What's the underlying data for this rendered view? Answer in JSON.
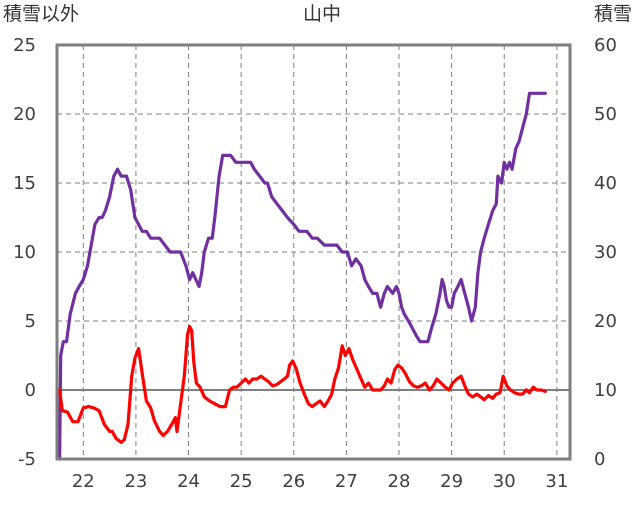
{
  "chart_data": {
    "type": "line",
    "title": "山中",
    "left_axis_label": "積雪以外",
    "right_axis_label": "積雪",
    "x_ticks": [
      "22",
      "23",
      "24",
      "25",
      "26",
      "27",
      "28",
      "29",
      "30",
      "31"
    ],
    "x_range": [
      21.5,
      31.25
    ],
    "y_left_ticks": [
      -5,
      0,
      5,
      10,
      15,
      20,
      25
    ],
    "y_left_range": [
      -5,
      25
    ],
    "y_right_ticks": [
      0,
      10,
      20,
      30,
      40,
      50,
      60
    ],
    "y_right_range": [
      0,
      60
    ],
    "grid": true,
    "zero_line": 0,
    "colors": {
      "snow_depth": "#7030a0",
      "other": "#ff0000",
      "grid": "#808080",
      "frame": "#7f7f7f"
    },
    "series": [
      {
        "axis": "right",
        "color": "#7030a0",
        "points": [
          [
            21.55,
            0
          ],
          [
            21.57,
            15
          ],
          [
            21.62,
            17
          ],
          [
            21.68,
            17
          ],
          [
            21.75,
            21
          ],
          [
            21.85,
            24
          ],
          [
            21.92,
            25
          ],
          [
            22.0,
            26
          ],
          [
            22.08,
            28
          ],
          [
            22.15,
            31
          ],
          [
            22.22,
            34
          ],
          [
            22.3,
            35
          ],
          [
            22.36,
            35
          ],
          [
            22.42,
            36
          ],
          [
            22.5,
            38
          ],
          [
            22.58,
            41
          ],
          [
            22.65,
            42
          ],
          [
            22.72,
            41
          ],
          [
            22.82,
            41
          ],
          [
            22.9,
            39
          ],
          [
            22.98,
            35
          ],
          [
            23.05,
            34
          ],
          [
            23.12,
            33
          ],
          [
            23.2,
            33
          ],
          [
            23.28,
            32
          ],
          [
            23.35,
            32
          ],
          [
            23.45,
            32
          ],
          [
            23.55,
            31
          ],
          [
            23.65,
            30
          ],
          [
            23.75,
            30
          ],
          [
            23.85,
            30
          ],
          [
            23.95,
            28
          ],
          [
            24.02,
            26
          ],
          [
            24.08,
            27
          ],
          [
            24.14,
            26
          ],
          [
            24.2,
            25
          ],
          [
            24.25,
            27
          ],
          [
            24.3,
            30
          ],
          [
            24.38,
            32
          ],
          [
            24.45,
            32
          ],
          [
            24.5,
            35
          ],
          [
            24.58,
            41
          ],
          [
            24.65,
            44
          ],
          [
            24.72,
            44
          ],
          [
            24.8,
            44
          ],
          [
            24.9,
            43
          ],
          [
            25.0,
            43
          ],
          [
            25.1,
            43
          ],
          [
            25.18,
            43
          ],
          [
            25.25,
            42
          ],
          [
            25.35,
            41
          ],
          [
            25.45,
            40
          ],
          [
            25.5,
            40
          ],
          [
            25.58,
            38
          ],
          [
            25.68,
            37
          ],
          [
            25.78,
            36
          ],
          [
            25.88,
            35
          ],
          [
            26.0,
            34
          ],
          [
            26.1,
            33
          ],
          [
            26.25,
            33
          ],
          [
            26.35,
            32
          ],
          [
            26.45,
            32
          ],
          [
            26.58,
            31
          ],
          [
            26.7,
            31
          ],
          [
            26.82,
            31
          ],
          [
            26.92,
            30
          ],
          [
            27.02,
            30
          ],
          [
            27.1,
            28
          ],
          [
            27.18,
            29
          ],
          [
            27.28,
            28
          ],
          [
            27.35,
            26
          ],
          [
            27.42,
            25
          ],
          [
            27.5,
            24
          ],
          [
            27.58,
            24
          ],
          [
            27.65,
            22
          ],
          [
            27.72,
            24
          ],
          [
            27.78,
            25
          ],
          [
            27.88,
            24
          ],
          [
            27.95,
            25
          ],
          [
            28.0,
            24
          ],
          [
            28.05,
            22
          ],
          [
            28.1,
            21
          ],
          [
            28.18,
            20
          ],
          [
            28.25,
            19
          ],
          [
            28.32,
            18
          ],
          [
            28.4,
            17
          ],
          [
            28.48,
            17
          ],
          [
            28.55,
            17
          ],
          [
            28.62,
            19
          ],
          [
            28.7,
            21
          ],
          [
            28.78,
            24
          ],
          [
            28.82,
            26
          ],
          [
            28.86,
            25
          ],
          [
            28.9,
            23
          ],
          [
            28.95,
            22
          ],
          [
            29.0,
            22
          ],
          [
            29.05,
            24
          ],
          [
            29.12,
            25
          ],
          [
            29.18,
            26
          ],
          [
            29.25,
            24
          ],
          [
            29.32,
            22
          ],
          [
            29.38,
            20
          ],
          [
            29.45,
            22
          ],
          [
            29.5,
            27
          ],
          [
            29.55,
            30
          ],
          [
            29.62,
            32
          ],
          [
            29.7,
            34
          ],
          [
            29.78,
            36
          ],
          [
            29.85,
            37
          ],
          [
            29.88,
            41
          ],
          [
            29.95,
            40
          ],
          [
            30.0,
            43
          ],
          [
            30.05,
            42
          ],
          [
            30.1,
            43
          ],
          [
            30.15,
            42
          ],
          [
            30.22,
            45
          ],
          [
            30.28,
            46
          ],
          [
            30.35,
            48
          ],
          [
            30.42,
            50
          ],
          [
            30.48,
            53
          ],
          [
            30.52,
            53
          ],
          [
            30.58,
            53
          ],
          [
            30.65,
            53
          ],
          [
            30.72,
            53
          ],
          [
            30.78,
            53
          ]
        ]
      },
      {
        "axis": "left",
        "color": "#ff0000",
        "points": [
          [
            21.55,
            0
          ],
          [
            21.6,
            -1.5
          ],
          [
            21.7,
            -1.6
          ],
          [
            21.8,
            -2.3
          ],
          [
            21.9,
            -2.3
          ],
          [
            22.0,
            -1.3
          ],
          [
            22.1,
            -1.2
          ],
          [
            22.2,
            -1.3
          ],
          [
            22.3,
            -1.5
          ],
          [
            22.4,
            -2.5
          ],
          [
            22.5,
            -3.0
          ],
          [
            22.55,
            -3.0
          ],
          [
            22.62,
            -3.5
          ],
          [
            22.72,
            -3.8
          ],
          [
            22.78,
            -3.6
          ],
          [
            22.85,
            -2.5
          ],
          [
            22.92,
            1.0
          ],
          [
            22.98,
            2.3
          ],
          [
            23.05,
            3.0
          ],
          [
            23.12,
            1.2
          ],
          [
            23.2,
            -0.8
          ],
          [
            23.28,
            -1.3
          ],
          [
            23.35,
            -2.2
          ],
          [
            23.45,
            -3.0
          ],
          [
            23.52,
            -3.3
          ],
          [
            23.6,
            -3.0
          ],
          [
            23.68,
            -2.5
          ],
          [
            23.75,
            -2.0
          ],
          [
            23.78,
            -3.0
          ],
          [
            23.85,
            -1.0
          ],
          [
            23.92,
            1.0
          ],
          [
            23.98,
            4.0
          ],
          [
            24.02,
            4.6
          ],
          [
            24.06,
            4.3
          ],
          [
            24.1,
            2.0
          ],
          [
            24.15,
            0.5
          ],
          [
            24.22,
            0.2
          ],
          [
            24.3,
            -0.5
          ],
          [
            24.4,
            -0.8
          ],
          [
            24.5,
            -1.0
          ],
          [
            24.6,
            -1.2
          ],
          [
            24.7,
            -1.2
          ],
          [
            24.78,
            0.0
          ],
          [
            24.85,
            0.2
          ],
          [
            24.92,
            0.2
          ],
          [
            25.0,
            0.5
          ],
          [
            25.08,
            0.8
          ],
          [
            25.15,
            0.5
          ],
          [
            25.22,
            0.8
          ],
          [
            25.3,
            0.8
          ],
          [
            25.38,
            1.0
          ],
          [
            25.45,
            0.8
          ],
          [
            25.52,
            0.6
          ],
          [
            25.6,
            0.3
          ],
          [
            25.68,
            0.4
          ],
          [
            25.75,
            0.6
          ],
          [
            25.82,
            0.8
          ],
          [
            25.88,
            1.0
          ],
          [
            25.92,
            1.8
          ],
          [
            25.98,
            2.1
          ],
          [
            26.05,
            1.5
          ],
          [
            26.12,
            0.5
          ],
          [
            26.2,
            -0.3
          ],
          [
            26.28,
            -1.0
          ],
          [
            26.35,
            -1.2
          ],
          [
            26.42,
            -1.0
          ],
          [
            26.5,
            -0.8
          ],
          [
            26.58,
            -1.2
          ],
          [
            26.65,
            -0.8
          ],
          [
            26.72,
            -0.3
          ],
          [
            26.78,
            0.8
          ],
          [
            26.85,
            1.6
          ],
          [
            26.92,
            3.2
          ],
          [
            26.98,
            2.5
          ],
          [
            27.05,
            3.0
          ],
          [
            27.12,
            2.2
          ],
          [
            27.2,
            1.5
          ],
          [
            27.28,
            0.8
          ],
          [
            27.35,
            0.2
          ],
          [
            27.42,
            0.5
          ],
          [
            27.5,
            0.0
          ],
          [
            27.58,
            0.0
          ],
          [
            27.65,
            0.0
          ],
          [
            27.72,
            0.3
          ],
          [
            27.78,
            0.8
          ],
          [
            27.85,
            0.5
          ],
          [
            27.92,
            1.5
          ],
          [
            27.98,
            1.8
          ],
          [
            28.05,
            1.6
          ],
          [
            28.12,
            1.2
          ],
          [
            28.2,
            0.6
          ],
          [
            28.28,
            0.3
          ],
          [
            28.35,
            0.2
          ],
          [
            28.42,
            0.3
          ],
          [
            28.5,
            0.5
          ],
          [
            28.58,
            0.0
          ],
          [
            28.65,
            0.3
          ],
          [
            28.72,
            0.8
          ],
          [
            28.8,
            0.5
          ],
          [
            28.88,
            0.2
          ],
          [
            28.95,
            0.0
          ],
          [
            29.02,
            0.5
          ],
          [
            29.1,
            0.8
          ],
          [
            29.18,
            1.0
          ],
          [
            29.25,
            0.3
          ],
          [
            29.32,
            -0.3
          ],
          [
            29.4,
            -0.5
          ],
          [
            29.48,
            -0.3
          ],
          [
            29.55,
            -0.5
          ],
          [
            29.62,
            -0.7
          ],
          [
            29.7,
            -0.4
          ],
          [
            29.78,
            -0.6
          ],
          [
            29.85,
            -0.3
          ],
          [
            29.92,
            -0.2
          ],
          [
            29.98,
            1.0
          ],
          [
            30.05,
            0.3
          ],
          [
            30.12,
            0.0
          ],
          [
            30.2,
            -0.2
          ],
          [
            30.28,
            -0.3
          ],
          [
            30.35,
            -0.3
          ],
          [
            30.42,
            0.0
          ],
          [
            30.48,
            -0.2
          ],
          [
            30.55,
            0.2
          ],
          [
            30.62,
            0.0
          ],
          [
            30.7,
            0.0
          ],
          [
            30.78,
            -0.1
          ]
        ]
      }
    ]
  }
}
